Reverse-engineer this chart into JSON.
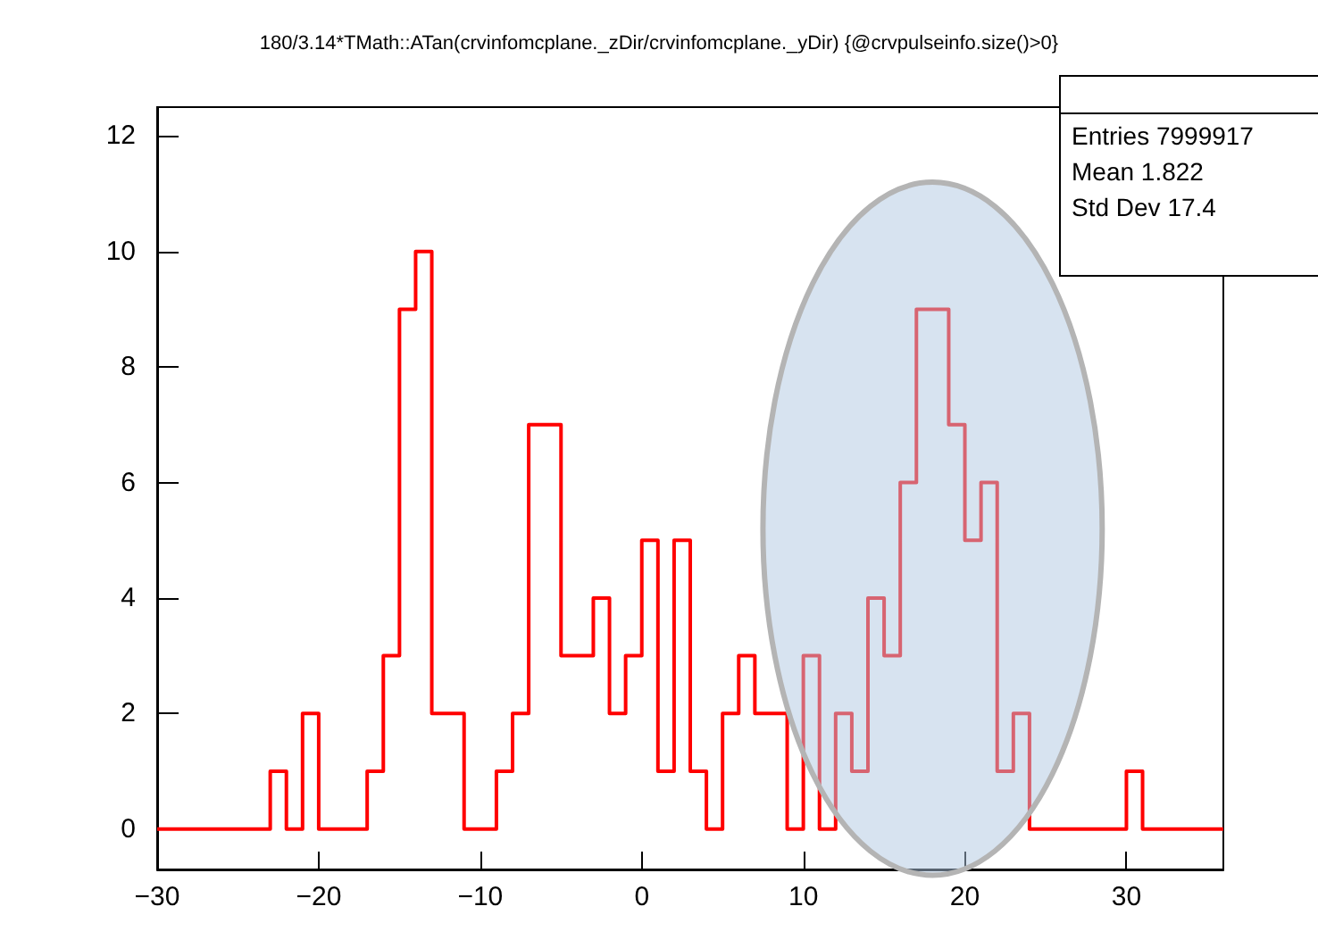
{
  "chart_data": {
    "type": "histogram",
    "title": "180/3.14*TMath::ATan(crvinfomcplane._zDir/crvinfomcplane._yDir) {@crvpulseinfo.size()>0}",
    "bins": [
      -30,
      -29,
      -28,
      -27,
      -26,
      -25,
      -24,
      -23,
      -22,
      -21,
      -20,
      -19,
      -18,
      -17,
      -16,
      -15,
      -14,
      -13,
      -12,
      -11,
      -10,
      -9,
      -8,
      -7,
      -6,
      -5,
      -4,
      -3,
      -2,
      -1,
      0,
      1,
      2,
      3,
      4,
      5,
      6,
      7,
      8,
      9,
      10,
      11,
      12,
      13,
      14,
      15,
      16,
      17,
      18,
      19,
      20,
      21,
      22,
      23,
      24,
      25,
      26,
      27,
      28,
      29,
      30,
      31,
      32,
      33,
      34,
      35,
      36
    ],
    "values": [
      0,
      0,
      0,
      0,
      0,
      0,
      0,
      1,
      0,
      2,
      0,
      0,
      0,
      1,
      3,
      9,
      10,
      2,
      2,
      0,
      0,
      1,
      2,
      7,
      7,
      3,
      3,
      4,
      2,
      3,
      5,
      1,
      5,
      1,
      0,
      2,
      3,
      2,
      2,
      0,
      3,
      0,
      2,
      1,
      4,
      3,
      6,
      9,
      9,
      7,
      5,
      6,
      1,
      2,
      0,
      0,
      0,
      0,
      0,
      0,
      1,
      0,
      0,
      0,
      0,
      0
    ],
    "color": "#ff0000",
    "xlim": [
      -30,
      36
    ],
    "xticks": [
      -30,
      -20,
      -10,
      0,
      10,
      20,
      30
    ],
    "ylim": [
      -0.7,
      12.5
    ],
    "yticks": [
      0,
      2,
      4,
      6,
      8,
      10,
      12
    ],
    "annotations": [
      "Entries 7999917",
      "Mean 1.822",
      "Std Dev 17.4"
    ]
  }
}
